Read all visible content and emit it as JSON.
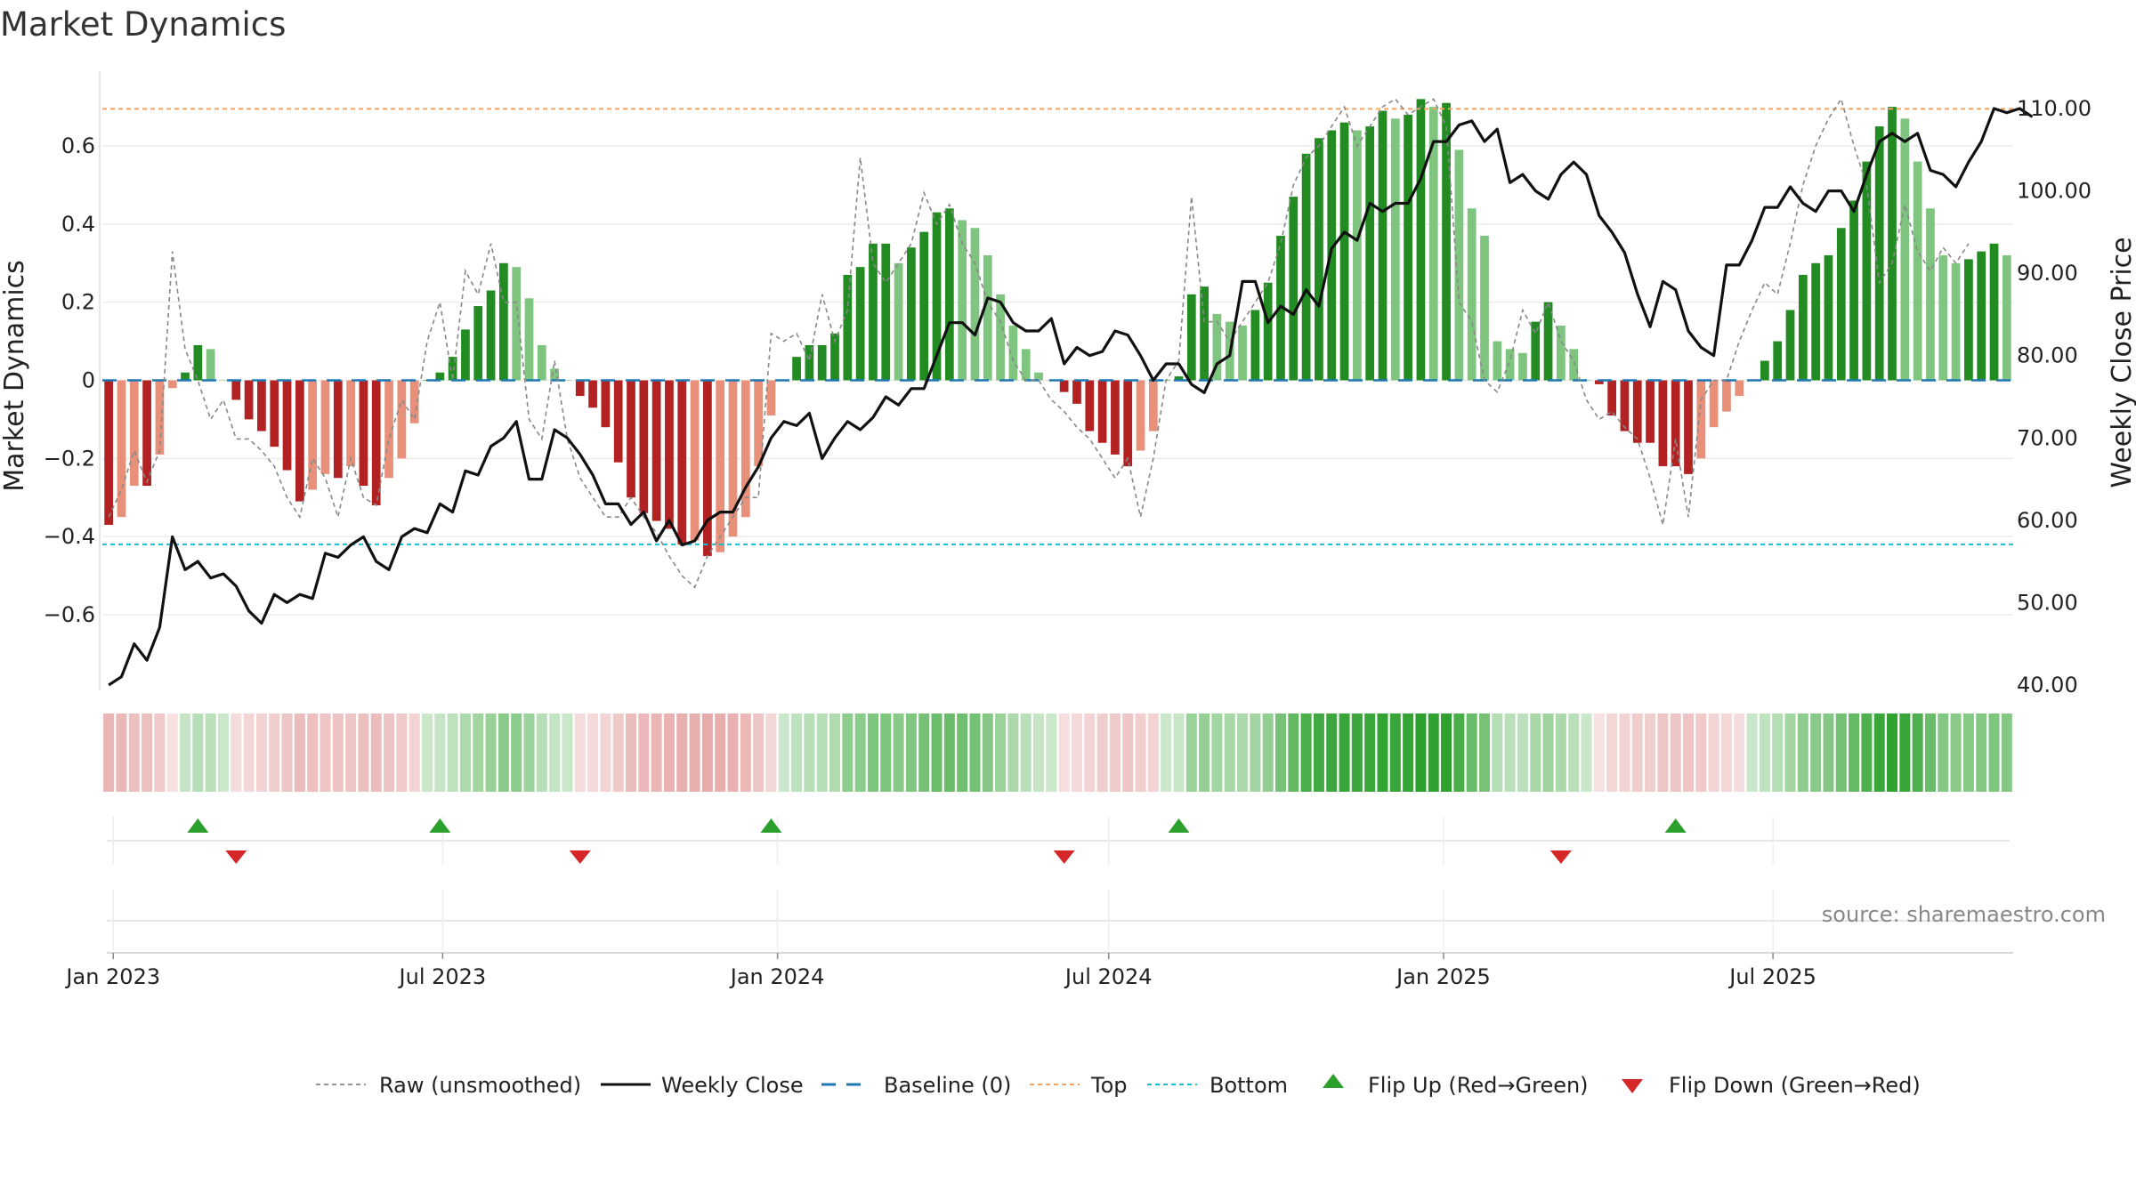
{
  "chart_data": {
    "type": "bar",
    "title": "Market Dynamics",
    "left_axis": {
      "label": "Market Dynamics",
      "ylim": [
        -0.78,
        0.78
      ],
      "ticks": [
        0.6,
        0.4,
        0.2,
        0,
        -0.2,
        -0.4,
        -0.6
      ],
      "tick_labels": [
        "0.6",
        "0.4",
        "0.2",
        "0",
        "−0.2",
        "−0.4",
        "−0.6"
      ]
    },
    "right_axis": {
      "label": "Weekly Close Price",
      "ylim": [
        40,
        114
      ],
      "ticks": [
        110,
        100,
        90,
        80,
        70,
        60,
        50,
        40
      ],
      "tick_labels": [
        "110.00",
        "100.00",
        "90.00",
        "80.00",
        "70.00",
        "60.00",
        "50.00",
        "40.00"
      ]
    },
    "x_axis": {
      "start": "2022-12-26",
      "weeks": 144,
      "tick_labels": [
        "Jan 2023",
        "Jul 2023",
        "Jan 2024",
        "Jul 2024",
        "Jan 2025",
        "Jul 2025"
      ],
      "tick_dates": [
        "2023-01-01",
        "2023-07-01",
        "2024-01-01",
        "2024-07-01",
        "2025-01-01",
        "2025-07-01"
      ]
    },
    "grid": true,
    "top_threshold": 0.695,
    "bottom_threshold": -0.42,
    "baseline": 0,
    "colors": {
      "green_strong": "#228b22",
      "green_light": "#7fc47f",
      "red_strong": "#b22222",
      "red_light": "#e8907a",
      "raw_line": "#888888",
      "close_line": "#111111",
      "baseline": "#1f77b4",
      "top": "#f4a460",
      "bottom": "#17becf",
      "flip_up": "#2ca02c",
      "flip_down": "#d62728"
    },
    "dynamics": [
      -0.37,
      -0.35,
      -0.27,
      -0.27,
      -0.19,
      -0.02,
      0.02,
      0.09,
      0.08,
      0.0,
      -0.05,
      -0.1,
      -0.13,
      -0.17,
      -0.23,
      -0.31,
      -0.28,
      -0.24,
      -0.25,
      -0.22,
      -0.27,
      -0.32,
      -0.25,
      -0.2,
      -0.11,
      0.0,
      0.02,
      0.06,
      0.13,
      0.19,
      0.23,
      0.3,
      0.29,
      0.21,
      0.09,
      0.03,
      0.0,
      -0.04,
      -0.07,
      -0.12,
      -0.21,
      -0.3,
      -0.34,
      -0.36,
      -0.38,
      -0.42,
      -0.41,
      -0.45,
      -0.44,
      -0.4,
      -0.35,
      -0.22,
      -0.09,
      0.0,
      0.06,
      0.09,
      0.09,
      0.12,
      0.27,
      0.29,
      0.35,
      0.35,
      0.3,
      0.34,
      0.38,
      0.43,
      0.44,
      0.41,
      0.39,
      0.32,
      0.22,
      0.14,
      0.08,
      0.02,
      0.0,
      -0.03,
      -0.06,
      -0.13,
      -0.16,
      -0.19,
      -0.22,
      -0.18,
      -0.13,
      0.0,
      0.01,
      0.22,
      0.24,
      0.17,
      0.15,
      0.14,
      0.18,
      0.25,
      0.37,
      0.47,
      0.58,
      0.62,
      0.64,
      0.66,
      0.64,
      0.65,
      0.69,
      0.67,
      0.68,
      0.72,
      0.7,
      0.71,
      0.59,
      0.44,
      0.37,
      0.1,
      0.08,
      0.07,
      0.15,
      0.2,
      0.14,
      0.08,
      0.0,
      -0.01,
      -0.09,
      -0.13,
      -0.16,
      -0.16,
      -0.22,
      -0.22,
      -0.24,
      -0.2,
      -0.12,
      -0.08,
      -0.04,
      0.0,
      0.05,
      0.1,
      0.18,
      0.27,
      0.3,
      0.32,
      0.39,
      0.46,
      0.56,
      0.65,
      0.7,
      0.67,
      0.56,
      0.44,
      0.32,
      0.3,
      0.31,
      0.33,
      0.35,
      0.32
    ],
    "raw": [
      -0.35,
      -0.28,
      -0.18,
      -0.26,
      -0.18,
      0.33,
      0.08,
      0.0,
      -0.1,
      -0.05,
      -0.15,
      -0.15,
      -0.18,
      -0.22,
      -0.3,
      -0.35,
      -0.2,
      -0.25,
      -0.35,
      -0.2,
      -0.3,
      -0.32,
      -0.15,
      -0.05,
      -0.1,
      0.1,
      0.2,
      0.0,
      0.28,
      0.22,
      0.35,
      0.2,
      0.2,
      -0.1,
      -0.15,
      0.05,
      -0.15,
      -0.25,
      -0.3,
      -0.35,
      -0.35,
      -0.3,
      -0.35,
      -0.39,
      -0.45,
      -0.5,
      -0.53,
      -0.45,
      -0.4,
      -0.35,
      -0.3,
      -0.3,
      0.12,
      0.1,
      0.12,
      0.05,
      0.22,
      0.1,
      0.18,
      0.57,
      0.3,
      0.25,
      0.3,
      0.35,
      0.48,
      0.4,
      0.45,
      0.35,
      0.3,
      0.2,
      0.15,
      0.05,
      0.0,
      0.0,
      -0.05,
      -0.08,
      -0.12,
      -0.15,
      -0.2,
      -0.25,
      -0.2,
      -0.35,
      -0.2,
      0.0,
      0.05,
      0.47,
      0.15,
      0.15,
      0.1,
      0.15,
      0.2,
      0.25,
      0.35,
      0.5,
      0.57,
      0.6,
      0.65,
      0.7,
      0.6,
      0.65,
      0.7,
      0.72,
      0.68,
      0.7,
      0.72,
      0.65,
      0.2,
      0.15,
      0.0,
      -0.03,
      0.05,
      0.18,
      0.12,
      0.2,
      0.1,
      0.05,
      -0.05,
      -0.1,
      -0.08,
      -0.12,
      -0.15,
      -0.25,
      -0.37,
      -0.15,
      -0.35,
      -0.05,
      0.0,
      0.0,
      0.1,
      0.18,
      0.25,
      0.22,
      0.35,
      0.5,
      0.6,
      0.67,
      0.72,
      0.6,
      0.5,
      0.25,
      0.3,
      0.45,
      0.33,
      0.28,
      0.34,
      0.3,
      0.35
    ],
    "weekly_close": [
      40.0,
      41.0,
      45.0,
      43.0,
      47.0,
      58.0,
      54.0,
      55.0,
      53.0,
      53.5,
      52.0,
      49.0,
      47.5,
      51.0,
      50.0,
      51.0,
      50.5,
      56.0,
      55.5,
      57.0,
      58.0,
      55.0,
      54.0,
      58.0,
      59.0,
      58.5,
      62.0,
      61.0,
      66.0,
      65.5,
      69.0,
      70.0,
      72.0,
      65.0,
      65.0,
      71.0,
      70.0,
      68.0,
      65.5,
      62.0,
      62.0,
      59.5,
      61.0,
      57.5,
      60.0,
      57.0,
      57.5,
      60.0,
      61.0,
      61.0,
      64.0,
      66.5,
      70.0,
      72.0,
      71.5,
      73.0,
      67.5,
      70.0,
      72.0,
      71.0,
      72.5,
      75.0,
      74.0,
      76.0,
      76.0,
      80.0,
      84.0,
      84.0,
      82.5,
      87.0,
      86.5,
      84.0,
      83.0,
      83.0,
      84.5,
      79.0,
      81.0,
      80.0,
      80.5,
      83.0,
      82.5,
      80.0,
      77.0,
      79.0,
      79.0,
      76.5,
      75.5,
      79.0,
      80.0,
      89.0,
      89.0,
      84.0,
      86.0,
      85.0,
      88.0,
      86.0,
      93.0,
      95.0,
      94.0,
      98.5,
      97.5,
      98.5,
      98.5,
      101.5,
      106.0,
      106.0,
      108.0,
      108.5,
      106.0,
      107.5,
      101.0,
      102.0,
      100.0,
      99.0,
      102.0,
      103.5,
      102.0,
      97.0,
      95.0,
      92.5,
      87.5,
      83.5,
      89.0,
      88.0,
      83.0,
      81.0,
      80.0,
      91.0,
      91.0,
      94.0,
      98.0,
      98.0,
      100.5,
      98.5,
      97.5,
      100.0,
      100.0,
      97.5,
      102.0,
      106.0,
      107.0,
      106.0,
      107.0,
      102.5,
      102.0,
      100.5,
      103.5,
      106.0,
      110.0,
      109.5,
      110.0,
      109.0
    ],
    "flip_up_weeks": [
      7,
      26,
      52,
      84,
      123
    ],
    "flip_down_weeks": [
      10,
      37,
      75,
      114
    ],
    "legend": [
      "Raw (unsmoothed)",
      "Weekly Close",
      "Baseline (0)",
      "Top",
      "Bottom",
      "Flip Up (Red→Green)",
      "Flip Down (Green→Red)"
    ],
    "source": "source: sharemaestro.com"
  }
}
